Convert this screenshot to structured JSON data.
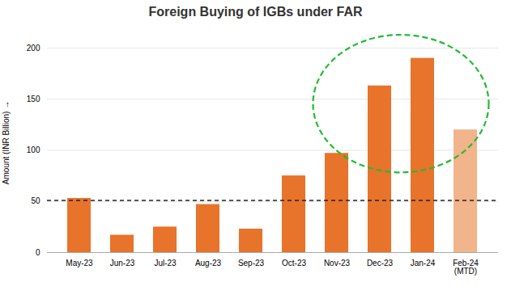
{
  "chart_data": {
    "type": "bar",
    "title": "Foreign Buying of IGBs under FAR",
    "categories": [
      "May-23",
      "Jun-23",
      "Jul-23",
      "Aug-23",
      "Sep-23",
      "Oct-23",
      "Nov-23",
      "Dec-23",
      "Jan-24",
      "Feb-24\n(MTD)"
    ],
    "values": [
      53,
      17,
      25,
      47,
      23,
      75,
      97,
      163,
      190,
      120
    ],
    "colors": [
      "#E8732A",
      "#E8732A",
      "#E8732A",
      "#E8732A",
      "#E8732A",
      "#E8732A",
      "#E8732A",
      "#E8732A",
      "#E8732A",
      "#F2B48A"
    ],
    "ylabel": "Amount (INR Billion)",
    "ylim": [
      0,
      215
    ],
    "yticks": [
      0,
      50,
      100,
      150,
      200
    ],
    "grid": true,
    "reference_line": {
      "y": 51,
      "color": "#222222",
      "line_style": "dashed"
    },
    "highlight": {
      "categories": [
        "Nov-23",
        "Dec-23",
        "Jan-24",
        "Feb-24\n(MTD)"
      ],
      "color": "#22BB33",
      "line_style": "dashed"
    }
  }
}
